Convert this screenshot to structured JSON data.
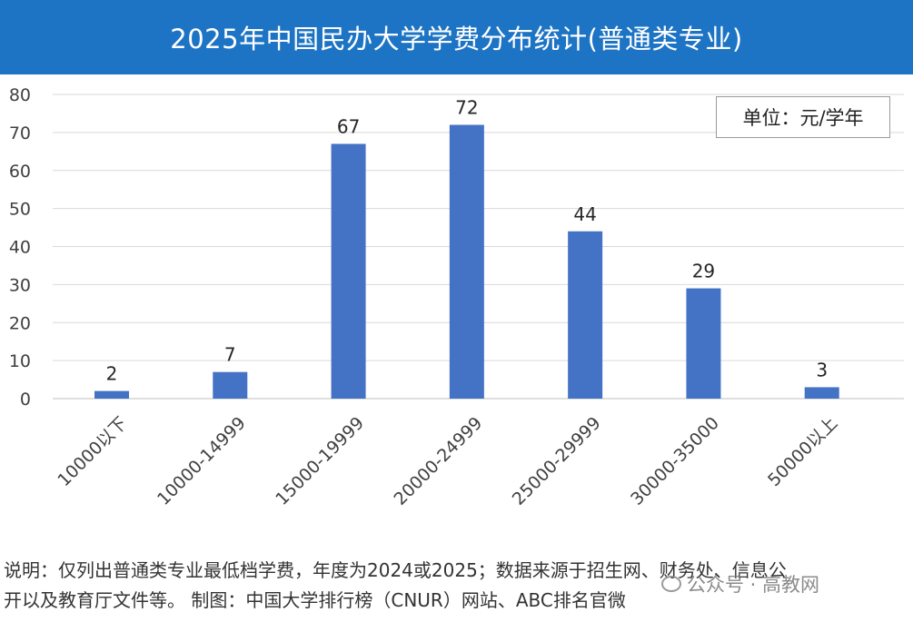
{
  "header": {
    "title": "2025年中国民办大学学费分布统计(普通类专业)"
  },
  "unit_label": "单位：元/学年",
  "chart_data": {
    "type": "bar",
    "title": "2025年中国民办大学学费分布统计(普通类专业)",
    "categories": [
      "10000以下",
      "10000-14999",
      "15000-19999",
      "20000-24999",
      "25000-29999",
      "30000-35000",
      "50000以上"
    ],
    "values": [
      2,
      7,
      67,
      72,
      44,
      29,
      3
    ],
    "data_labels": [
      "2",
      "7",
      "67",
      "72",
      "44",
      "29",
      "3"
    ],
    "xlabel": "",
    "ylabel": "",
    "ylim": [
      0,
      80
    ],
    "yticks": [
      0,
      10,
      20,
      30,
      40,
      50,
      60,
      70,
      80
    ],
    "grid": true,
    "bar_color": "#4472c4",
    "legend": "none"
  },
  "notes": {
    "line1": "说明：仅列出普通类专业最低档学费，年度为2024或2025；数据来源于招生网、财务处、信息公",
    "line2": "开以及教育厅文件等。 制图：中国大学排行榜（CNUR）网站、ABC排名官微"
  },
  "watermark": {
    "text": "公众号 · 高教网",
    "icon": "wechat-icon"
  },
  "colors": {
    "title_bg": "#1e74c4",
    "bar": "#4472c4",
    "grid": "#d9d9d9"
  }
}
